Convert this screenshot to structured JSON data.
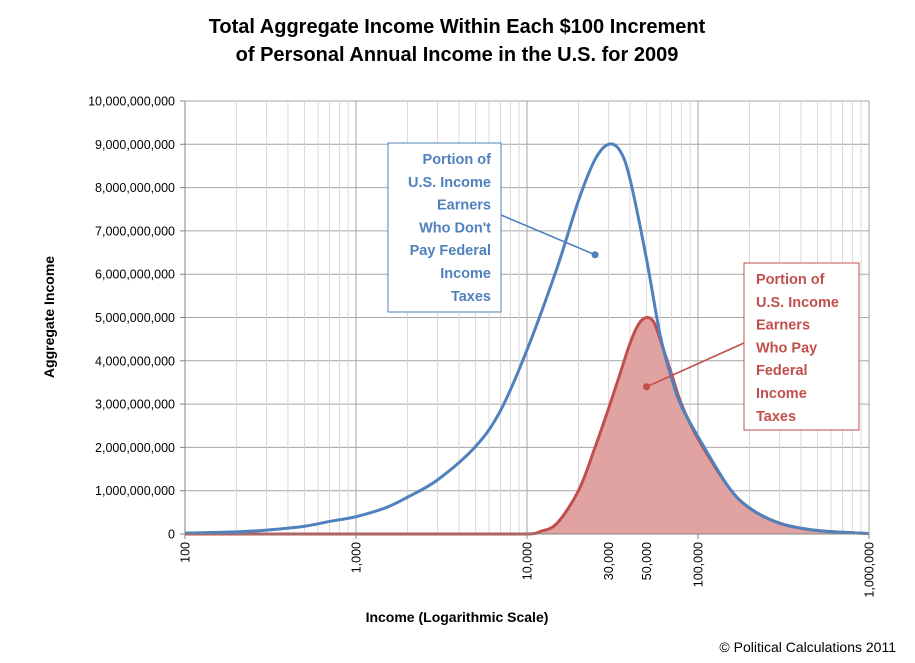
{
  "colors": {
    "blue": "#4f81bd",
    "red": "#c0504d",
    "red_fill": "#e0a3a2",
    "grid": "#d9d9d9",
    "grid_major": "#a6a6a6"
  },
  "copyright": "© Political Calculations 2011",
  "chart_data": {
    "type": "area",
    "title": [
      "Total Aggregate Income Within Each $100 Increment",
      "of Personal Annual Income in the U.S. for 2009"
    ],
    "xlabel": "Income (Logarithmic Scale)",
    "ylabel": "Aggregate Income",
    "x_scale": "log",
    "xlim": [
      100,
      1000000
    ],
    "ylim": [
      0,
      10000000000
    ],
    "x_ticks": [
      {
        "value": 100,
        "label": "100"
      },
      {
        "value": 1000,
        "label": "1,000"
      },
      {
        "value": 10000,
        "label": "10,000"
      },
      {
        "value": 30000,
        "label": "30,000"
      },
      {
        "value": 50000,
        "label": "50,000"
      },
      {
        "value": 100000,
        "label": "100,000"
      },
      {
        "value": 1000000,
        "label": "1,000,000"
      }
    ],
    "y_ticks": [
      {
        "value": 0,
        "label": "0"
      },
      {
        "value": 1000000000,
        "label": "1,000,000,000"
      },
      {
        "value": 2000000000,
        "label": "2,000,000,000"
      },
      {
        "value": 3000000000,
        "label": "3,000,000,000"
      },
      {
        "value": 4000000000,
        "label": "4,000,000,000"
      },
      {
        "value": 5000000000,
        "label": "5,000,000,000"
      },
      {
        "value": 6000000000,
        "label": "6,000,000,000"
      },
      {
        "value": 7000000000,
        "label": "7,000,000,000"
      },
      {
        "value": 8000000000,
        "label": "8,000,000,000"
      },
      {
        "value": 9000000000,
        "label": "9,000,000,000"
      },
      {
        "value": 10000000000,
        "label": "10,000,000,000"
      }
    ],
    "grid": true,
    "series": [
      {
        "name": "Portion of U.S. Income Earners Who Don't Pay Federal Income Taxes",
        "color": "#4f81bd",
        "style": "line",
        "points": [
          [
            100,
            20000000
          ],
          [
            200,
            50000000
          ],
          [
            300,
            90000000
          ],
          [
            500,
            180000000
          ],
          [
            700,
            290000000
          ],
          [
            1000,
            400000000
          ],
          [
            1500,
            610000000
          ],
          [
            2000,
            850000000
          ],
          [
            3000,
            1250000000
          ],
          [
            5000,
            2020000000
          ],
          [
            7000,
            2850000000
          ],
          [
            10000,
            4250000000
          ],
          [
            15000,
            6150000000
          ],
          [
            20000,
            7700000000
          ],
          [
            25000,
            8650000000
          ],
          [
            30000,
            9000000000
          ],
          [
            35000,
            8850000000
          ],
          [
            40000,
            8200000000
          ],
          [
            50000,
            6350000000
          ],
          [
            60000,
            4600000000
          ],
          [
            70000,
            3600000000
          ],
          [
            80000,
            2950000000
          ],
          [
            100000,
            2250000000
          ],
          [
            150000,
            1100000000
          ],
          [
            200000,
            600000000
          ],
          [
            300000,
            250000000
          ],
          [
            500000,
            80000000
          ],
          [
            1000000,
            10000000
          ]
        ]
      },
      {
        "name": "Portion of U.S. Income Earners Who Pay Federal Income Taxes",
        "color": "#c0504d",
        "style": "area",
        "points": [
          [
            100,
            0
          ],
          [
            1000,
            0
          ],
          [
            5000,
            0
          ],
          [
            10000,
            0
          ],
          [
            12000,
            60000000
          ],
          [
            15000,
            250000000
          ],
          [
            20000,
            1000000000
          ],
          [
            25000,
            2000000000
          ],
          [
            30000,
            2900000000
          ],
          [
            35000,
            3700000000
          ],
          [
            40000,
            4400000000
          ],
          [
            45000,
            4850000000
          ],
          [
            50000,
            5000000000
          ],
          [
            55000,
            4900000000
          ],
          [
            60000,
            4500000000
          ],
          [
            70000,
            3700000000
          ],
          [
            80000,
            3000000000
          ],
          [
            100000,
            2200000000
          ],
          [
            150000,
            1100000000
          ],
          [
            200000,
            600000000
          ],
          [
            300000,
            250000000
          ],
          [
            500000,
            80000000
          ],
          [
            1000000,
            10000000
          ]
        ]
      }
    ],
    "annotations": [
      {
        "series": 0,
        "lines": [
          "Portion of",
          "U.S. Income",
          "Earners",
          "Who Don't",
          "Pay Federal",
          "Income",
          "Taxes"
        ],
        "point": [
          25000,
          6450000000
        ]
      },
      {
        "series": 1,
        "lines": [
          "Portion of",
          "U.S. Income",
          "Earners",
          "Who Pay",
          "Federal",
          "Income",
          "Taxes"
        ],
        "point": [
          50000,
          3400000000
        ]
      }
    ]
  }
}
